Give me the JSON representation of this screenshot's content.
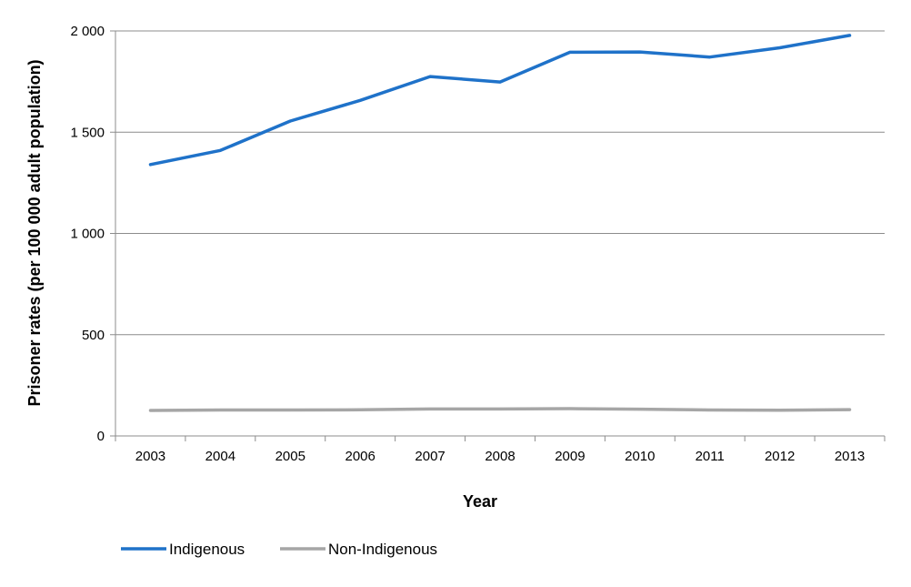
{
  "chart_data": {
    "type": "line",
    "title": "",
    "xlabel": "Year",
    "ylabel": "Prisoner rates (per 100 000 adult population)",
    "x": [
      "2003",
      "2004",
      "2005",
      "2006",
      "2007",
      "2008",
      "2009",
      "2010",
      "2011",
      "2012",
      "2013"
    ],
    "ylim": [
      0,
      2000
    ],
    "y_ticks": [
      0,
      500,
      1000,
      1500,
      2000
    ],
    "y_tick_labels": [
      "0",
      "500",
      "1 000",
      "1 500",
      "2 000"
    ],
    "grid": "horizontal",
    "legend_position": "bottom-left",
    "series": [
      {
        "name": "Indigenous",
        "color": "#1f72c9",
        "values": [
          1340,
          1410,
          1555,
          1657,
          1775,
          1748,
          1895,
          1896,
          1871,
          1917,
          1978
        ]
      },
      {
        "name": "Non-Indigenous",
        "color": "#a6a6a6",
        "values": [
          126,
          128,
          128,
          129,
          133,
          133,
          135,
          132,
          128,
          127,
          130
        ]
      }
    ]
  }
}
